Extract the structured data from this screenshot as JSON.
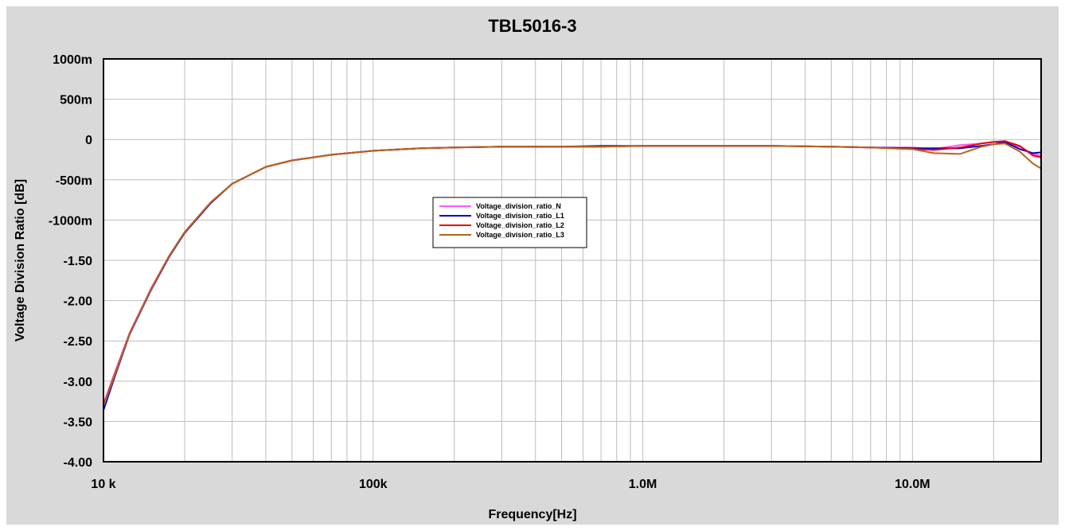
{
  "chart_data": {
    "type": "line",
    "title": "TBL5016-3",
    "xlabel": "Frequency[Hz]",
    "ylabel": "Voltage Division Ratio [dB]",
    "x_scale": "log",
    "xlim": [
      10000,
      30000000
    ],
    "ylim": [
      -4.0,
      1.0
    ],
    "grid": true,
    "legend_position": "center",
    "x_tick_labels": [
      {
        "value": 10000,
        "label": "10 k"
      },
      {
        "value": 100000,
        "label": "100k"
      },
      {
        "value": 1000000,
        "label": "1.0M"
      },
      {
        "value": 10000000,
        "label": "10.0M"
      }
    ],
    "y_tick_labels": [
      {
        "value": 1.0,
        "label": "1000m"
      },
      {
        "value": 0.5,
        "label": "500m"
      },
      {
        "value": 0.0,
        "label": "0"
      },
      {
        "value": -0.5,
        "label": "-500m"
      },
      {
        "value": -1.0,
        "label": "-1000m"
      },
      {
        "value": -1.5,
        "label": "-1.50"
      },
      {
        "value": -2.0,
        "label": "-2.00"
      },
      {
        "value": -2.5,
        "label": "-2.50"
      },
      {
        "value": -3.0,
        "label": "-3.00"
      },
      {
        "value": -3.5,
        "label": "-3.50"
      },
      {
        "value": -4.0,
        "label": "-4.00"
      }
    ],
    "series": [
      {
        "name": "Voltage_division_ratio_N",
        "color": "#ff55ff",
        "x": [
          10000,
          11000,
          12500,
          15000,
          17500,
          20000,
          25000,
          30000,
          40000,
          50000,
          70000,
          100000,
          150000,
          200000,
          300000,
          500000,
          700000,
          1000000,
          1500000,
          2000000,
          3000000,
          5000000,
          7000000,
          10000000,
          12000000,
          15000000,
          18000000,
          20000000,
          22000000,
          25000000,
          28000000,
          30000000
        ],
        "y": [
          -3.28,
          -2.9,
          -2.4,
          -1.85,
          -1.45,
          -1.15,
          -0.78,
          -0.55,
          -0.34,
          -0.26,
          -0.19,
          -0.14,
          -0.11,
          -0.1,
          -0.09,
          -0.09,
          -0.09,
          -0.08,
          -0.08,
          -0.08,
          -0.08,
          -0.09,
          -0.1,
          -0.1,
          -0.12,
          -0.07,
          -0.05,
          -0.03,
          -0.03,
          -0.09,
          -0.18,
          -0.2
        ]
      },
      {
        "name": "Voltage_division_ratio_L1",
        "color": "#0000cc",
        "x": [
          10000,
          11000,
          12500,
          15000,
          17500,
          20000,
          25000,
          30000,
          40000,
          50000,
          70000,
          100000,
          150000,
          200000,
          300000,
          500000,
          700000,
          1000000,
          1500000,
          2000000,
          3000000,
          5000000,
          7000000,
          10000000,
          12000000,
          15000000,
          18000000,
          20000000,
          22000000,
          25000000,
          28000000,
          30000000
        ],
        "y": [
          -3.36,
          -2.95,
          -2.42,
          -1.87,
          -1.46,
          -1.16,
          -0.79,
          -0.55,
          -0.34,
          -0.26,
          -0.19,
          -0.14,
          -0.11,
          -0.1,
          -0.09,
          -0.09,
          -0.08,
          -0.08,
          -0.08,
          -0.08,
          -0.08,
          -0.09,
          -0.1,
          -0.11,
          -0.11,
          -0.11,
          -0.08,
          -0.06,
          -0.03,
          -0.12,
          -0.17,
          -0.16
        ]
      },
      {
        "name": "Voltage_division_ratio_L2",
        "color": "#ee0000",
        "x": [
          10000,
          11000,
          12500,
          15000,
          17500,
          20000,
          25000,
          30000,
          40000,
          50000,
          70000,
          100000,
          150000,
          200000,
          300000,
          500000,
          700000,
          1000000,
          1500000,
          2000000,
          3000000,
          5000000,
          7000000,
          10000000,
          12000000,
          15000000,
          18000000,
          20000000,
          22000000,
          25000000,
          28000000,
          30000000
        ],
        "y": [
          -3.3,
          -2.92,
          -2.41,
          -1.86,
          -1.45,
          -1.15,
          -0.78,
          -0.55,
          -0.34,
          -0.26,
          -0.19,
          -0.14,
          -0.11,
          -0.1,
          -0.09,
          -0.09,
          -0.09,
          -0.08,
          -0.08,
          -0.08,
          -0.08,
          -0.09,
          -0.1,
          -0.12,
          -0.13,
          -0.1,
          -0.05,
          -0.03,
          -0.02,
          -0.08,
          -0.2,
          -0.22
        ]
      },
      {
        "name": "Voltage_division_ratio_L3",
        "color": "#b5651d",
        "x": [
          10000,
          11000,
          12500,
          15000,
          17500,
          20000,
          25000,
          30000,
          40000,
          50000,
          70000,
          100000,
          150000,
          200000,
          300000,
          500000,
          700000,
          1000000,
          1500000,
          2000000,
          3000000,
          5000000,
          7000000,
          10000000,
          12000000,
          15000000,
          18000000,
          20000000,
          22000000,
          25000000,
          28000000,
          30000000
        ],
        "y": [
          -3.31,
          -2.93,
          -2.41,
          -1.86,
          -1.45,
          -1.15,
          -0.78,
          -0.55,
          -0.34,
          -0.26,
          -0.19,
          -0.14,
          -0.11,
          -0.1,
          -0.09,
          -0.09,
          -0.09,
          -0.08,
          -0.08,
          -0.08,
          -0.08,
          -0.09,
          -0.1,
          -0.12,
          -0.17,
          -0.18,
          -0.09,
          -0.06,
          -0.05,
          -0.15,
          -0.3,
          -0.36
        ]
      }
    ]
  }
}
